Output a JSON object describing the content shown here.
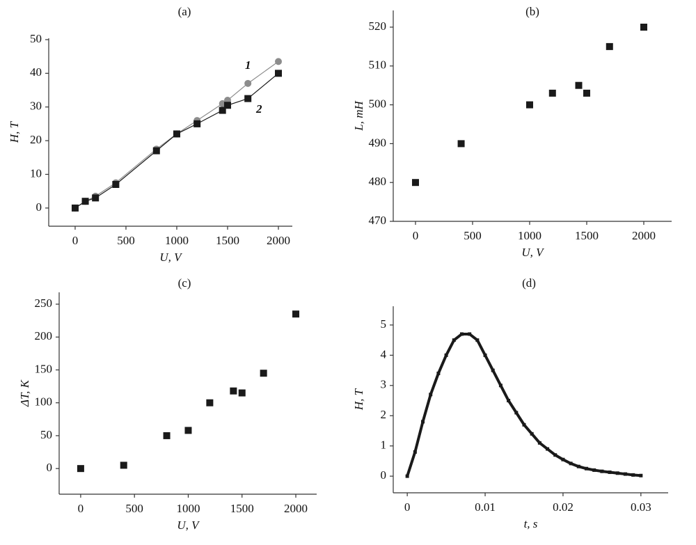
{
  "chart_data": [
    {
      "type": "line",
      "title": "(a)",
      "x_label": "U, V",
      "y_label": "H, T",
      "x": [
        0,
        100,
        200,
        400,
        800,
        1000,
        1200,
        1450,
        1500,
        1700,
        2000
      ],
      "series": [
        {
          "name": "1",
          "color": "#8c8c8c",
          "marker": "circle",
          "values": [
            0,
            2,
            3.5,
            7.5,
            17.5,
            22,
            26,
            31,
            32,
            37,
            43.5
          ]
        },
        {
          "name": "2",
          "color": "#1a1a1a",
          "marker": "square",
          "values": [
            0,
            2,
            3,
            7,
            17,
            22,
            25,
            29,
            30.5,
            32.5,
            40
          ]
        }
      ],
      "xlim": [
        -260,
        2137
      ],
      "xticks": [
        0,
        500,
        1000,
        1500,
        2000
      ],
      "ylim": [
        -5.4,
        50.4
      ],
      "yticks": [
        0,
        10,
        20,
        30,
        40,
        50
      ]
    },
    {
      "type": "scatter",
      "title": "(b)",
      "x_label": "U, V",
      "y_label": "L, mH",
      "x": [
        0,
        400,
        1000,
        1200,
        1430,
        1500,
        1700,
        2000
      ],
      "values": [
        480,
        490,
        500,
        503,
        505,
        503,
        515,
        520
      ],
      "color": "#1a1a1a",
      "xlim": [
        -195,
        2244
      ],
      "xticks": [
        0,
        500,
        1000,
        1500,
        2000
      ],
      "ylim": [
        470,
        524.3
      ],
      "yticks": [
        470,
        480,
        490,
        500,
        510,
        520
      ]
    },
    {
      "type": "scatter",
      "title": "(c)",
      "x_label": "U, V",
      "y_label": "ΔT, K",
      "x": [
        0,
        400,
        800,
        1000,
        1200,
        1420,
        1500,
        1700,
        2000
      ],
      "values": [
        0,
        5,
        50,
        58,
        100,
        118,
        115,
        145,
        235
      ],
      "color": "#1a1a1a",
      "xlim": [
        -200,
        2194
      ],
      "xticks": [
        0,
        500,
        1000,
        1500,
        2000
      ],
      "ylim": [
        -39,
        268
      ],
      "yticks": [
        0,
        50,
        100,
        150,
        200,
        250
      ]
    },
    {
      "type": "line",
      "title": "(d)",
      "x_label": "t, s",
      "y_label": "H, T",
      "x": [
        0,
        0.001,
        0.002,
        0.003,
        0.004,
        0.005,
        0.006,
        0.007,
        0.008,
        0.009,
        0.01,
        0.011,
        0.012,
        0.013,
        0.014,
        0.015,
        0.016,
        0.017,
        0.018,
        0.019,
        0.02,
        0.021,
        0.022,
        0.023,
        0.024,
        0.025,
        0.026,
        0.027,
        0.028,
        0.029,
        0.03
      ],
      "series": [
        {
          "color": "#1a1a1a",
          "marker": "square",
          "values": [
            0,
            0.8,
            1.8,
            2.7,
            3.4,
            4.0,
            4.5,
            4.7,
            4.7,
            4.5,
            4.0,
            3.5,
            3.0,
            2.5,
            2.1,
            1.7,
            1.4,
            1.1,
            0.9,
            0.7,
            0.55,
            0.42,
            0.32,
            0.25,
            0.2,
            0.16,
            0.13,
            0.1,
            0.07,
            0.04,
            0.02
          ]
        }
      ],
      "xlim": [
        -0.0018,
        0.0335
      ],
      "xticks": [
        0,
        0.01,
        0.02,
        0.03
      ],
      "ylim": [
        -0.55,
        5.62
      ],
      "yticks": [
        0,
        1,
        2,
        3,
        4,
        5
      ]
    }
  ]
}
